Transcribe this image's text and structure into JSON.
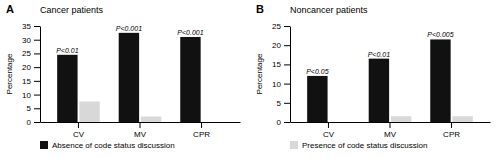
{
  "chart_data": [
    {
      "type": "bar",
      "label": "A",
      "title": "Cancer patients",
      "ylabel": "Percentage",
      "categories": [
        "CV",
        "MV",
        "CPR"
      ],
      "series": [
        {
          "name": "Absence of code status discussion",
          "color": "#111111",
          "values": [
            24.5,
            32.5,
            31.0
          ]
        },
        {
          "color": "#d8d8d8",
          "values": [
            7.5,
            2.0,
            0.0
          ]
        }
      ],
      "annotations": [
        "P<0.01",
        "P<0.001",
        "P<0.001"
      ],
      "ylim": [
        0,
        35
      ],
      "yticks": [
        0,
        5,
        10,
        15,
        20,
        25,
        30,
        35
      ],
      "grid": false,
      "legend": "bottom"
    },
    {
      "type": "bar",
      "label": "B",
      "title": "Noncancer patients",
      "ylabel": "Percentage",
      "categories": [
        "CV",
        "MV",
        "CPR"
      ],
      "series": [
        {
          "color": "#111111",
          "values": [
            12.0,
            16.5,
            21.5
          ]
        },
        {
          "name": "Presence of code status discussion",
          "color": "#d8d8d8",
          "values": [
            0.0,
            1.5,
            1.5
          ]
        }
      ],
      "annotations": [
        "P<0.05",
        "P<0.01",
        "P<0.005"
      ],
      "ylim": [
        0,
        25
      ],
      "yticks": [
        0,
        5,
        10,
        15,
        20,
        25
      ],
      "grid": false,
      "legend": "bottom"
    }
  ]
}
